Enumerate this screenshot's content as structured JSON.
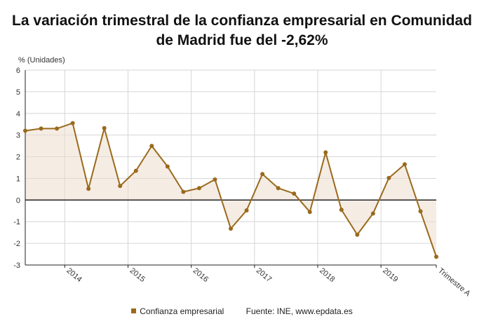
{
  "title_line1": "La variación trimestral de la confianza empresarial en Comunidad",
  "title_line2": "de Madrid fue del -2,62%",
  "legend": {
    "series_label": "Confianza empresarial",
    "source": "Fuente: INE, www.epdata.es"
  },
  "colors": {
    "series": "#9a6a1c",
    "fill": "#ecdccd",
    "grid": "#d6d6d6",
    "axis": "#222222",
    "tick_text": "#333333"
  },
  "chart_data": {
    "type": "area",
    "ylabel": "% (Unidades)",
    "ylim": [
      -3,
      6
    ],
    "yticks": [
      -3,
      -2,
      -1,
      0,
      1,
      2,
      3,
      4,
      5,
      6
    ],
    "grid": true,
    "xtick_labels": [
      "2014",
      "2015",
      "2016",
      "2017",
      "2018",
      "2019",
      "Trimestre A"
    ],
    "series": [
      {
        "name": "Confianza empresarial",
        "values": [
          3.2,
          3.3,
          3.3,
          3.55,
          0.52,
          3.32,
          0.65,
          1.35,
          2.5,
          1.55,
          0.38,
          0.55,
          0.95,
          -1.32,
          -0.48,
          1.2,
          0.55,
          0.3,
          -0.55,
          2.2,
          -0.45,
          -1.6,
          -0.62,
          1.02,
          1.65,
          -0.52,
          -2.62
        ]
      }
    ]
  }
}
